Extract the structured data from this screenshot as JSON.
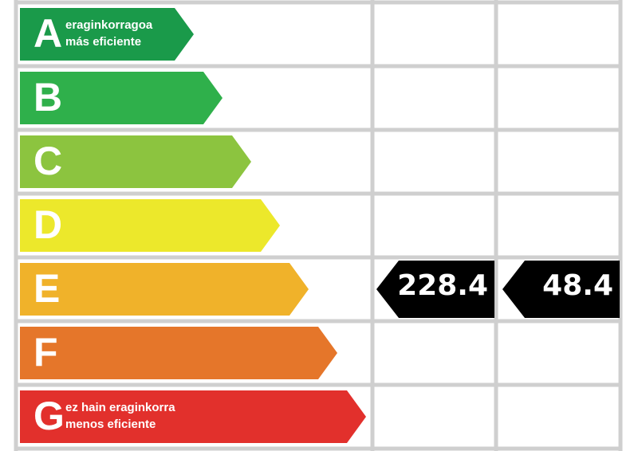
{
  "rows": [
    {
      "letter": "A",
      "color": "#1a9a4a",
      "lines": [
        "eraginkorragoa",
        "más eficiente"
      ]
    },
    {
      "letter": "B",
      "color": "#2fb04b"
    },
    {
      "letter": "C",
      "color": "#8cc43f"
    },
    {
      "letter": "D",
      "color": "#ece82b"
    },
    {
      "letter": "E",
      "color": "#f0b22a"
    },
    {
      "letter": "F",
      "color": "#e5762a"
    },
    {
      "letter": "G",
      "color": "#e2302c",
      "lines": [
        "ez hain eraginkorra",
        "menos eficiente"
      ]
    }
  ],
  "indicators": [
    228.4,
    48.4
  ]
}
